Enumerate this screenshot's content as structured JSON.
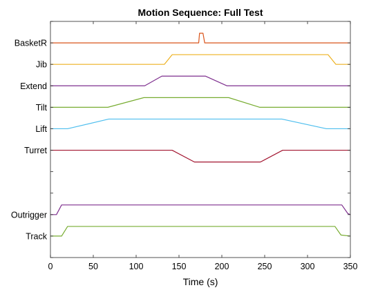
{
  "chart_data": {
    "type": "line",
    "title": "Motion Sequence: Full Test",
    "xlabel": "Time (s)",
    "ylabel": "",
    "xlim": [
      0,
      350
    ],
    "ylim": [
      0,
      11
    ],
    "xticks": [
      "0",
      "50",
      "100",
      "150",
      "200",
      "250",
      "300",
      "350"
    ],
    "xtick_values": [
      0,
      50,
      100,
      150,
      200,
      250,
      300,
      350
    ],
    "ytick_values": [
      0,
      1,
      2,
      3,
      4,
      5,
      6,
      7,
      8,
      9,
      10,
      11
    ],
    "ytick_labels": [
      "",
      "Track",
      "Outrigger",
      "",
      "",
      "Turret",
      "Lift",
      "Tilt",
      "Extend",
      "Jib",
      "BasketR",
      ""
    ],
    "grid": false,
    "series": [
      {
        "name": "BasketR",
        "color": "#D95319",
        "points": [
          [
            0,
            10
          ],
          [
            173,
            10
          ],
          [
            174,
            10.45
          ],
          [
            178,
            10.45
          ],
          [
            180,
            10
          ],
          [
            350,
            10
          ]
        ]
      },
      {
        "name": "Jib",
        "color": "#EDB120",
        "points": [
          [
            0,
            9
          ],
          [
            133,
            9
          ],
          [
            142,
            9.45
          ],
          [
            324,
            9.45
          ],
          [
            333,
            9
          ],
          [
            350,
            9
          ]
        ]
      },
      {
        "name": "Extend",
        "color": "#7E2F8E",
        "points": [
          [
            0,
            8
          ],
          [
            110,
            8
          ],
          [
            130,
            8.45
          ],
          [
            181,
            8.45
          ],
          [
            206,
            8
          ],
          [
            350,
            8
          ]
        ]
      },
      {
        "name": "Tilt",
        "color": "#77AC30",
        "points": [
          [
            0,
            7
          ],
          [
            67,
            7
          ],
          [
            109,
            7.45
          ],
          [
            208,
            7.45
          ],
          [
            244,
            7
          ],
          [
            350,
            7
          ]
        ]
      },
      {
        "name": "Lift",
        "color": "#4DBEEE",
        "points": [
          [
            0,
            6
          ],
          [
            20,
            6
          ],
          [
            68,
            6.45
          ],
          [
            270,
            6.45
          ],
          [
            322,
            6
          ],
          [
            350,
            6
          ]
        ]
      },
      {
        "name": "Turret",
        "color": "#A2142F",
        "points": [
          [
            0,
            5
          ],
          [
            142,
            5
          ],
          [
            168,
            4.45
          ],
          [
            245,
            4.45
          ],
          [
            271,
            5
          ],
          [
            350,
            5
          ]
        ]
      },
      {
        "name": "Outrigger",
        "color": "#7E2F8E",
        "points": [
          [
            0,
            2
          ],
          [
            7,
            2
          ],
          [
            13,
            2.45
          ],
          [
            340,
            2.45
          ],
          [
            347,
            2.05
          ],
          [
            350,
            2
          ]
        ]
      },
      {
        "name": "Track",
        "color": "#77AC30",
        "points": [
          [
            0,
            1
          ],
          [
            13,
            1
          ],
          [
            20,
            1.45
          ],
          [
            332,
            1.45
          ],
          [
            339,
            1.05
          ],
          [
            350,
            1
          ]
        ]
      }
    ]
  }
}
